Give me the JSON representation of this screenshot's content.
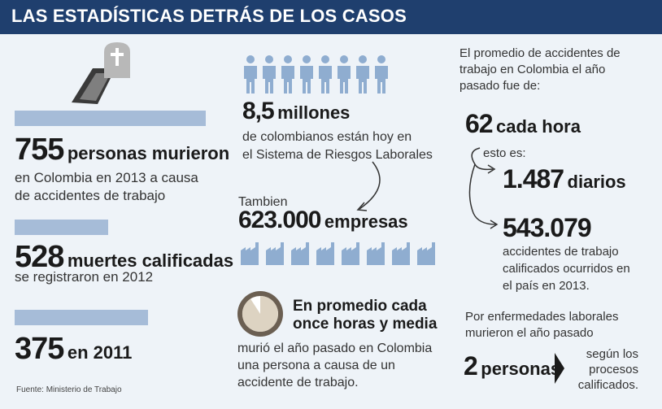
{
  "header": {
    "title": "LAS ESTADÍSTICAS DETRÁS DE LOS CASOS"
  },
  "left": {
    "stat1": {
      "number": "755",
      "label": "personas murieron",
      "desc_line1": "en Colombia en 2013 a causa",
      "desc_line2": "de accidentes de trabajo"
    },
    "stat2": {
      "number": "528",
      "label": "muertes calificadas",
      "desc": "se registraron en 2012"
    },
    "stat3": {
      "number": "375",
      "label": "en 2011"
    },
    "source": "Fuente: Ministerio de Trabajo"
  },
  "middle": {
    "people": {
      "number": "8,5",
      "unit": "millones",
      "desc_line1": "de colombianos están hoy en",
      "desc_line2": "el Sistema de Riesgos Laborales"
    },
    "companies": {
      "intro": "Tambien",
      "number": "623.000",
      "unit": "empresas"
    },
    "clock": {
      "headline_line1": "En promedio cada",
      "headline_line2": "once horas y media",
      "desc_line1": "murió el año pasado en Colombia",
      "desc_line2": "una persona a causa de un",
      "desc_line3": "accidente de trabajo."
    }
  },
  "right": {
    "intro_line1": "El promedio de accidentes de",
    "intro_line2": "trabajo en Colombia el año",
    "intro_line3": "pasado fue de:",
    "per_hour": {
      "number": "62",
      "unit": "cada hora"
    },
    "that_is": "esto es:",
    "per_day": {
      "number": "1.487",
      "unit": "diarios"
    },
    "total": {
      "number": "543.079",
      "desc_line1": "accidentes de trabajo",
      "desc_line2": "calificados ocurridos en",
      "desc_line3": "el país en 2013."
    },
    "disease": {
      "intro_line1": "Por enfermedades laborales",
      "intro_line2": "murieron el año pasado",
      "number": "2",
      "unit": "personas",
      "note_line1": "según los",
      "note_line2": "procesos",
      "note_line3": "calificados."
    }
  },
  "colors": {
    "header": "#1f3f6e",
    "bar": "#a6bcd8",
    "icon": "#8fadd0",
    "background": "#eef3f8"
  }
}
